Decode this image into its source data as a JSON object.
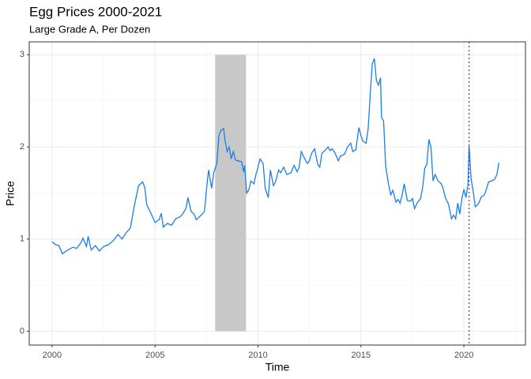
{
  "chart_data": {
    "type": "line",
    "title": "Egg Prices 2000-2021",
    "subtitle": "Large Grade A, Per Dozen",
    "x_label": "Time",
    "y_label": "Price",
    "xlim": [
      1998.89,
      2022.99
    ],
    "ylim": [
      -0.15,
      3.14
    ],
    "xticks": [
      2000,
      2005,
      2010,
      2015,
      2020
    ],
    "yticks": [
      0,
      1,
      2,
      3
    ],
    "minor_xticks": [
      2002.5,
      2007.5,
      2012.5,
      2017.5,
      2022.5
    ],
    "minor_yticks": [
      0.5,
      1.5,
      2.5
    ],
    "grid": true,
    "shaded_region": [
      2007.92,
      2009.42
    ],
    "shade_color": "#c8c8c8",
    "vline": 2020.25,
    "vline_color": "#ff0000",
    "x": [
      2000.0,
      2000.17,
      2000.33,
      2000.5,
      2000.75,
      2001.0,
      2001.2,
      2001.4,
      2001.5,
      2001.67,
      2001.75,
      2001.9,
      2002.1,
      2002.3,
      2002.5,
      2002.75,
      2003.0,
      2003.2,
      2003.4,
      2003.6,
      2003.8,
      2004.0,
      2004.2,
      2004.4,
      2004.5,
      2004.6,
      2004.8,
      2005.0,
      2005.2,
      2005.3,
      2005.4,
      2005.6,
      2005.8,
      2006.0,
      2006.2,
      2006.3,
      2006.5,
      2006.6,
      2006.75,
      2006.9,
      2007.0,
      2007.2,
      2007.4,
      2007.5,
      2007.6,
      2007.75,
      2007.85,
      2008.0,
      2008.1,
      2008.2,
      2008.33,
      2008.4,
      2008.5,
      2008.6,
      2008.7,
      2008.8,
      2008.9,
      2009.0,
      2009.2,
      2009.3,
      2009.35,
      2009.45,
      2009.55,
      2009.65,
      2009.8,
      2009.9,
      2010.0,
      2010.1,
      2010.25,
      2010.35,
      2010.5,
      2010.6,
      2010.75,
      2010.85,
      2011.0,
      2011.1,
      2011.25,
      2011.4,
      2011.6,
      2011.75,
      2011.9,
      2012.0,
      2012.1,
      2012.25,
      2012.4,
      2012.5,
      2012.6,
      2012.75,
      2012.9,
      2013.0,
      2013.1,
      2013.25,
      2013.4,
      2013.5,
      2013.6,
      2013.75,
      2013.9,
      2014.0,
      2014.2,
      2014.35,
      2014.5,
      2014.6,
      2014.75,
      2014.9,
      2015.0,
      2015.1,
      2015.25,
      2015.35,
      2015.45,
      2015.55,
      2015.65,
      2015.75,
      2015.85,
      2015.95,
      2016.0,
      2016.1,
      2016.2,
      2016.35,
      2016.45,
      2016.55,
      2016.7,
      2016.8,
      2016.9,
      2017.0,
      2017.1,
      2017.25,
      2017.4,
      2017.5,
      2017.6,
      2017.75,
      2017.9,
      2018.0,
      2018.1,
      2018.2,
      2018.3,
      2018.4,
      2018.5,
      2018.6,
      2018.75,
      2018.9,
      2019.0,
      2019.1,
      2019.25,
      2019.4,
      2019.5,
      2019.6,
      2019.7,
      2019.8,
      2019.9,
      2020.0,
      2020.1,
      2020.2,
      2020.25,
      2020.35,
      2020.45,
      2020.55,
      2020.7,
      2020.85,
      2021.0,
      2021.1,
      2021.2,
      2021.35,
      2021.5,
      2021.6,
      2021.7
    ],
    "series": [
      {
        "name": "Price",
        "color": "#1a7fe8",
        "values": [
          0.97,
          0.94,
          0.93,
          0.84,
          0.88,
          0.91,
          0.9,
          0.96,
          1.01,
          0.92,
          1.03,
          0.88,
          0.93,
          0.87,
          0.92,
          0.94,
          0.99,
          1.05,
          1.0,
          1.07,
          1.12,
          1.37,
          1.58,
          1.62,
          1.56,
          1.37,
          1.28,
          1.18,
          1.21,
          1.28,
          1.13,
          1.17,
          1.15,
          1.22,
          1.24,
          1.26,
          1.33,
          1.45,
          1.3,
          1.27,
          1.21,
          1.25,
          1.3,
          1.54,
          1.75,
          1.55,
          1.72,
          1.82,
          2.12,
          2.18,
          2.2,
          2.07,
          1.95,
          2.0,
          1.87,
          1.95,
          1.86,
          1.85,
          1.84,
          1.73,
          1.8,
          1.5,
          1.53,
          1.63,
          1.6,
          1.7,
          1.78,
          1.87,
          1.82,
          1.55,
          1.45,
          1.75,
          1.58,
          1.62,
          1.75,
          1.72,
          1.78,
          1.7,
          1.72,
          1.8,
          1.73,
          1.78,
          1.95,
          1.88,
          1.82,
          1.85,
          1.93,
          1.98,
          1.81,
          1.78,
          1.93,
          1.96,
          2.0,
          1.96,
          1.98,
          1.93,
          1.85,
          1.9,
          1.92,
          2.0,
          2.04,
          1.95,
          1.97,
          2.21,
          2.12,
          2.06,
          2.04,
          2.2,
          2.57,
          2.9,
          2.96,
          2.72,
          2.67,
          2.75,
          2.32,
          2.28,
          1.79,
          1.58,
          1.48,
          1.53,
          1.4,
          1.43,
          1.39,
          1.48,
          1.6,
          1.42,
          1.41,
          1.44,
          1.33,
          1.4,
          1.44,
          1.57,
          1.77,
          1.81,
          2.08,
          2.0,
          1.63,
          1.7,
          1.63,
          1.6,
          1.54,
          1.45,
          1.38,
          1.22,
          1.26,
          1.22,
          1.39,
          1.27,
          1.44,
          1.54,
          1.45,
          1.6,
          2.02,
          1.65,
          1.52,
          1.35,
          1.38,
          1.46,
          1.48,
          1.55,
          1.62,
          1.63,
          1.65,
          1.7,
          1.83
        ]
      }
    ]
  }
}
